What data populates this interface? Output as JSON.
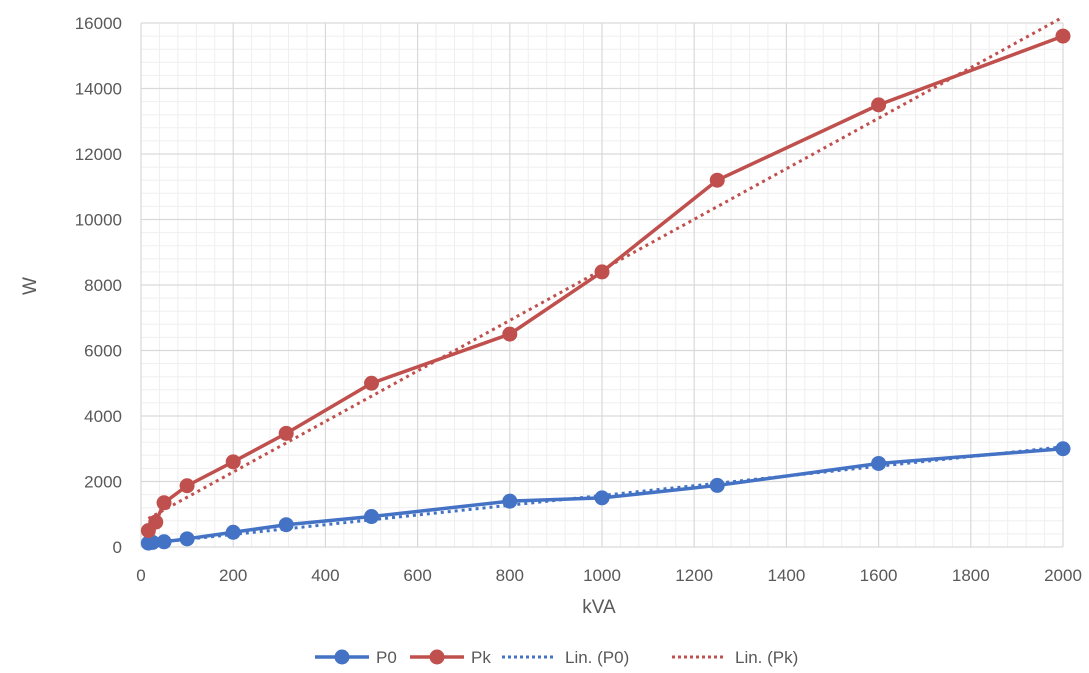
{
  "chart_data": {
    "type": "scatter",
    "title": "",
    "xlabel": "kVA",
    "ylabel": "W",
    "xlim": [
      0,
      2000
    ],
    "ylim": [
      0,
      16000
    ],
    "x_ticks": [
      "0",
      "200",
      "400",
      "600",
      "800",
      "1000",
      "1200",
      "1400",
      "1600",
      "1800",
      "2000"
    ],
    "y_ticks": [
      "0",
      "2000",
      "4000",
      "6000",
      "8000",
      "10000",
      "12000",
      "14000",
      "16000"
    ],
    "grid": "major and minor",
    "legend_position": "bottom",
    "series": [
      {
        "name": "P0",
        "color": "#4472c4",
        "style": "line-with-markers",
        "x": [
          16,
          25,
          50,
          100,
          200,
          315,
          500,
          800,
          1000,
          1250,
          1600,
          2000
        ],
        "y": [
          120,
          140,
          160,
          250,
          450,
          680,
          930,
          1400,
          1500,
          1880,
          2550,
          3000
        ]
      },
      {
        "name": "Pk",
        "color": "#c0504d",
        "style": "line-with-markers",
        "x": [
          16,
          32,
          50,
          100,
          200,
          315,
          500,
          800,
          1000,
          1250,
          1600,
          2000
        ],
        "y": [
          500,
          760,
          1350,
          1870,
          2600,
          3470,
          5000,
          6500,
          8400,
          11200,
          13500,
          15600
        ]
      },
      {
        "name": "Lin. (P0)",
        "color": "#4472c4",
        "style": "dotted-trendline",
        "x": [
          16,
          2000
        ],
        "y": [
          110,
          3060
        ]
      },
      {
        "name": "Lin. (Pk)",
        "color": "#c0504d",
        "style": "dotted-trendline",
        "x": [
          16,
          2000
        ],
        "y": [
          870,
          16180
        ]
      }
    ]
  },
  "legend": {
    "p0": "P0",
    "pk": "Pk",
    "lin_p0": "Lin. (P0)",
    "lin_pk": "Lin. (Pk)"
  }
}
